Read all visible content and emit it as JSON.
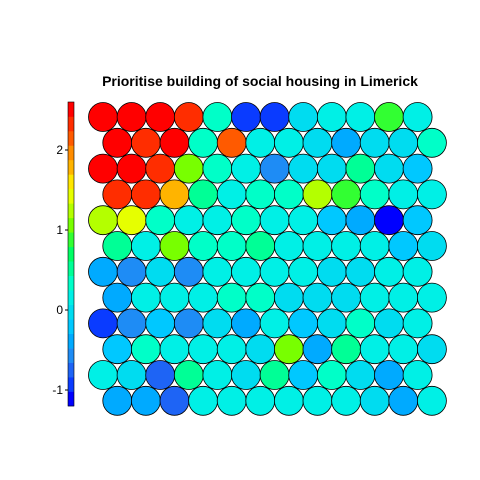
{
  "chart_data": {
    "type": "heatmap",
    "title": "Prioritise building of social housing in Limerick",
    "grid": {
      "rows": 12,
      "cols": 12,
      "cell_shape": "hexagon-circles"
    },
    "color_scale": {
      "min": -1.2,
      "max": 2.6,
      "ticks": [
        -1,
        0,
        1,
        2
      ],
      "tick_labels": [
        "-1",
        "0",
        "1",
        "2"
      ],
      "colors": [
        "#0000FF",
        "#0A3BFF",
        "#1E64F5",
        "#1E8CF5",
        "#00AAFF",
        "#00C8FF",
        "#00DCF0",
        "#00F0E6",
        "#00FFC8",
        "#00FF96",
        "#00FF64",
        "#32FF32",
        "#78FF00",
        "#B4FF00",
        "#E6FF00",
        "#FFE600",
        "#FFB400",
        "#FF8C00",
        "#FF5A00",
        "#FF2D00",
        "#FF0000"
      ]
    },
    "values": [
      [
        2.6,
        2.6,
        2.6,
        2.4,
        0.3,
        -0.85,
        -0.9,
        0.0,
        0.1,
        0.2,
        0.8,
        0.15
      ],
      [
        2.55,
        2.4,
        2.45,
        0.3,
        2.1,
        0.2,
        0.1,
        0.0,
        -0.4,
        -0.1,
        0.0,
        0.25
      ],
      [
        2.55,
        2.5,
        2.4,
        1.0,
        0.25,
        0.15,
        -0.5,
        -0.05,
        0.0,
        0.45,
        -0.1,
        -0.2
      ],
      [
        2.4,
        2.35,
        1.85,
        0.45,
        0.2,
        0.3,
        0.35,
        1.2,
        0.9,
        0.4,
        0.15,
        0.2
      ],
      [
        1.25,
        1.4,
        0.35,
        0.1,
        0.2,
        0.3,
        0.2,
        0.15,
        -0.2,
        -0.3,
        -1.1,
        -0.15
      ],
      [
        0.45,
        0.1,
        1.0,
        0.35,
        0.4,
        0.6,
        0.15,
        0.2,
        0.1,
        0.2,
        -0.15,
        0.0
      ],
      [
        -0.3,
        -0.6,
        -0.1,
        -0.55,
        0.15,
        0.2,
        0.1,
        0.2,
        0.05,
        0.05,
        0.15,
        0.2
      ],
      [
        -0.4,
        0.15,
        0.1,
        0.1,
        0.3,
        0.25,
        0.05,
        0.0,
        0.05,
        0.1,
        0.2,
        0.1
      ],
      [
        -0.9,
        -0.5,
        -0.2,
        -0.6,
        0.0,
        -0.3,
        0.1,
        -0.2,
        0.0,
        0.4,
        0.05,
        0.1
      ],
      [
        -0.2,
        0.4,
        0.2,
        0.15,
        0.1,
        0.05,
        1.1,
        -0.4,
        0.6,
        0.15,
        0.1,
        0.0
      ],
      [
        0.1,
        0.0,
        -0.7,
        0.55,
        0.1,
        0.05,
        0.5,
        -0.2,
        0.3,
        0.05,
        -0.3,
        0.2
      ],
      [
        -0.3,
        -0.4,
        -0.7,
        0.15,
        0.15,
        0.1,
        0.2,
        0.2,
        0.1,
        0.0,
        -0.4,
        0.2
      ]
    ]
  }
}
